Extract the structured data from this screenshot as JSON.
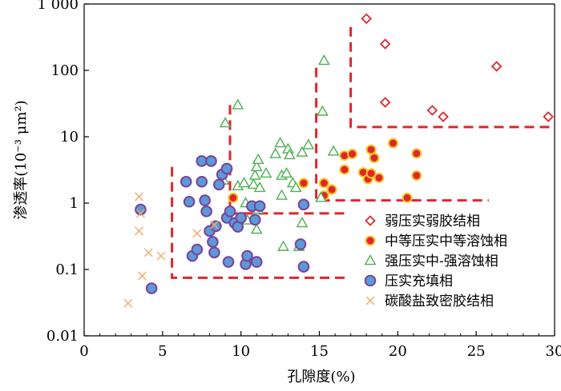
{
  "chart_data": {
    "type": "scatter",
    "xlabel": "孔隙度(%)",
    "ylabel": "渗透率(10⁻³ μm²)",
    "xlim": [
      0,
      30
    ],
    "ylim": [
      0.01,
      1000
    ],
    "yscale": "log",
    "x_ticks": [
      {
        "value": 0,
        "label": "0"
      },
      {
        "value": 5,
        "label": "5"
      },
      {
        "value": 10,
        "label": "10"
      },
      {
        "value": 15,
        "label": "15"
      },
      {
        "value": 20,
        "label": "20"
      },
      {
        "value": 25,
        "label": "25"
      },
      {
        "value": 30,
        "label": "30"
      }
    ],
    "y_ticks": [
      {
        "value": 0.01,
        "label": "0.01"
      },
      {
        "value": 0.1,
        "label": "0.1"
      },
      {
        "value": 1,
        "label": "1"
      },
      {
        "value": 10,
        "label": "10"
      },
      {
        "value": 100,
        "label": "100"
      },
      {
        "value": 1000,
        "label": "1 000"
      }
    ],
    "legend_position": "lower-right",
    "series": [
      {
        "name": "弱压实弱胶结相",
        "marker": "diamond",
        "color": "#e0262b",
        "points": [
          [
            18.0,
            600
          ],
          [
            19.2,
            250
          ],
          [
            19.2,
            33
          ],
          [
            22.2,
            25
          ],
          [
            22.9,
            20
          ],
          [
            26.3,
            115
          ],
          [
            29.6,
            20
          ]
        ]
      },
      {
        "name": "中等压实中等溶蚀相",
        "marker": "circle-filled",
        "color": "#e0262b",
        "edge": "#f3c825",
        "points": [
          [
            9.5,
            1.2
          ],
          [
            14.0,
            2.0
          ],
          [
            15.3,
            2.0
          ],
          [
            15.3,
            1.3
          ],
          [
            15.8,
            1.6
          ],
          [
            16.6,
            5.2
          ],
          [
            16.6,
            3.2
          ],
          [
            17.1,
            5.5
          ],
          [
            17.8,
            2.9
          ],
          [
            18.1,
            2.3
          ],
          [
            18.3,
            6.4
          ],
          [
            18.3,
            2.8
          ],
          [
            18.5,
            4.8
          ],
          [
            18.8,
            2.4
          ],
          [
            19.7,
            8.0
          ],
          [
            20.6,
            1.2
          ],
          [
            21.2,
            5.6
          ],
          [
            21.2,
            2.6
          ]
        ]
      },
      {
        "name": "强压实中-强溶蚀相",
        "marker": "triangle",
        "color": "#4caf50",
        "points": [
          [
            9.0,
            16
          ],
          [
            9.8,
            30
          ],
          [
            8.9,
            2.2
          ],
          [
            9.8,
            1.8
          ],
          [
            10.2,
            2.0
          ],
          [
            10.3,
            1.0
          ],
          [
            10.4,
            0.55
          ],
          [
            10.8,
            1.9
          ],
          [
            10.9,
            2.6
          ],
          [
            11.0,
            3.5
          ],
          [
            11.1,
            4.5
          ],
          [
            11.2,
            1.7
          ],
          [
            11.1,
            0.8
          ],
          [
            11.0,
            0.4
          ],
          [
            11.6,
            2.8
          ],
          [
            12.2,
            5.5
          ],
          [
            12.5,
            8.0
          ],
          [
            12.6,
            2.6
          ],
          [
            12.6,
            1.3
          ],
          [
            12.9,
            2.8
          ],
          [
            13.0,
            6.5
          ],
          [
            13.1,
            5.3
          ],
          [
            13.3,
            2.0
          ],
          [
            13.5,
            1.7
          ],
          [
            13.9,
            5.8
          ],
          [
            13.9,
            0.5
          ],
          [
            14.3,
            7.5
          ],
          [
            15.3,
            140
          ],
          [
            15.2,
            24
          ],
          [
            15.1,
            1.2
          ],
          [
            15.9,
            6.0
          ],
          [
            12.7,
            0.22
          ],
          [
            13.7,
            0.22
          ]
        ]
      },
      {
        "name": "压实充填相",
        "marker": "circle-filled",
        "color": "#5b9bd5",
        "edge": "#7b3f9e",
        "points": [
          [
            3.6,
            0.8
          ],
          [
            4.3,
            0.052
          ],
          [
            6.5,
            2.1
          ],
          [
            6.7,
            1.05
          ],
          [
            6.9,
            0.16
          ],
          [
            7.2,
            0.2
          ],
          [
            7.5,
            4.3
          ],
          [
            7.5,
            2.1
          ],
          [
            7.7,
            1.1
          ],
          [
            7.8,
            0.75
          ],
          [
            8.0,
            0.38
          ],
          [
            8.1,
            4.3
          ],
          [
            8.2,
            0.26
          ],
          [
            8.3,
            0.18
          ],
          [
            8.4,
            0.45
          ],
          [
            8.6,
            1.9
          ],
          [
            8.8,
            2.7
          ],
          [
            9.1,
            3.3
          ],
          [
            9.1,
            0.6
          ],
          [
            9.2,
            0.13
          ],
          [
            9.3,
            0.75
          ],
          [
            9.6,
            0.5
          ],
          [
            9.8,
            0.44
          ],
          [
            10.0,
            0.6
          ],
          [
            10.3,
            0.12
          ],
          [
            10.4,
            0.16
          ],
          [
            10.7,
            0.9
          ],
          [
            10.9,
            0.56
          ],
          [
            11.0,
            0.13
          ],
          [
            11.2,
            0.9
          ],
          [
            13.8,
            0.24
          ],
          [
            14.0,
            0.11
          ],
          [
            14.0,
            0.95
          ]
        ]
      },
      {
        "name": "碳酸盐致密胶结相",
        "marker": "x",
        "color": "#f5a66a",
        "points": [
          [
            2.8,
            0.031
          ],
          [
            3.5,
            1.25
          ],
          [
            3.5,
            0.38
          ],
          [
            3.6,
            0.7
          ],
          [
            3.7,
            0.08
          ],
          [
            4.1,
            0.18
          ],
          [
            4.9,
            0.16
          ],
          [
            7.2,
            0.35
          ],
          [
            8.3,
            0.47
          ]
        ]
      }
    ],
    "boundary_lines": [
      {
        "color": "#e0262b",
        "points": [
          [
            5.6,
            3.5
          ],
          [
            5.6,
            0.075
          ],
          [
            16.7,
            0.075
          ]
        ]
      },
      {
        "color": "#e0262b",
        "points": [
          [
            9.3,
            30
          ],
          [
            9.3,
            0.7
          ],
          [
            16.7,
            0.7
          ]
        ]
      },
      {
        "color": "#e0262b",
        "points": [
          [
            14.8,
            110
          ],
          [
            14.8,
            1.1
          ],
          [
            25.8,
            1.1
          ]
        ]
      },
      {
        "color": "#e0262b",
        "points": [
          [
            17.0,
            450
          ],
          [
            17.0,
            14
          ],
          [
            30.0,
            14
          ]
        ]
      }
    ]
  }
}
